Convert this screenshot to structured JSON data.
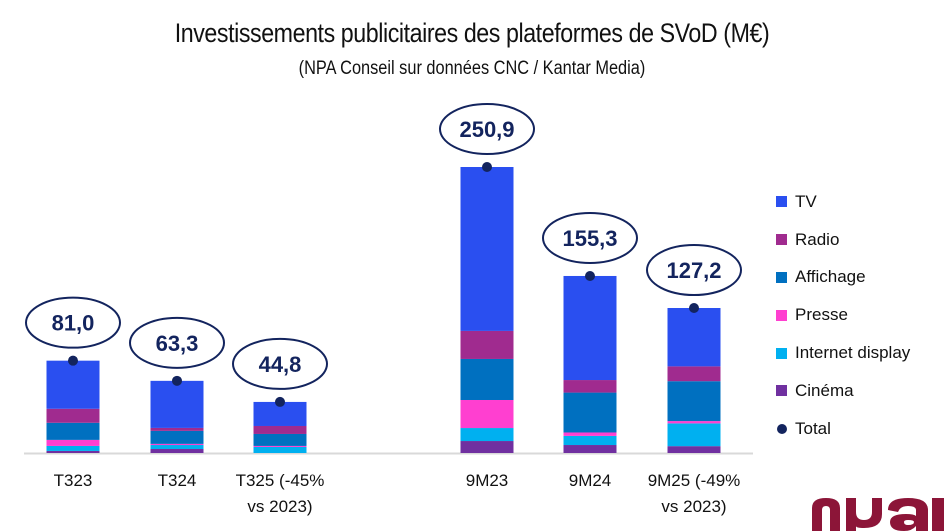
{
  "title": "Investissements publicitaires des plateformes de SVoD (M€)",
  "subtitle": "(NPA Conseil sur données CNC / Kantar Media)",
  "chart_data": {
    "type": "bar",
    "stacked": true,
    "title": "Investissements publicitaires des plateformes de SVoD (M€)",
    "subtitle": "(NPA Conseil sur données CNC / Kantar Media)",
    "xlabel": "",
    "ylabel": "",
    "ylim": [
      0,
      260
    ],
    "grid": false,
    "legend_position": "right",
    "categories": [
      "T323",
      "T324",
      "T325 (-45% vs 2023)",
      "9M23",
      "9M24",
      "9M25 (-49% vs 2023)"
    ],
    "category_lines": [
      [
        "T323"
      ],
      [
        "T324"
      ],
      [
        "T325 (-45%",
        "vs 2023)"
      ],
      [
        "9M23"
      ],
      [
        "9M24"
      ],
      [
        "9M25 (-49%",
        "vs 2023)"
      ]
    ],
    "groups_gap_after_index": 2,
    "series": [
      {
        "name": "Cinéma",
        "color": "#7030a0",
        "values": [
          1.8,
          3.5,
          0.0,
          10.5,
          7.0,
          6.0
        ]
      },
      {
        "name": "Internet display",
        "color": "#00b0f0",
        "values": [
          4.4,
          3.5,
          5.3,
          11.4,
          8.0,
          20.0
        ]
      },
      {
        "name": "Presse",
        "color": "#ff3fd0",
        "values": [
          5.3,
          1.0,
          0.9,
          24.6,
          3.0,
          2.0
        ]
      },
      {
        "name": "Affichage",
        "color": "#0070c0",
        "values": [
          15.0,
          11.4,
          10.5,
          36.0,
          35.0,
          35.0
        ]
      },
      {
        "name": "Radio",
        "color": "#a02b8f",
        "values": [
          12.3,
          2.6,
          7.0,
          24.6,
          11.0,
          13.0
        ]
      },
      {
        "name": "TV",
        "color": "#2a4ff0",
        "values": [
          42.2,
          41.3,
          21.1,
          143.8,
          91.3,
          51.2
        ]
      }
    ],
    "totals": {
      "name": "Total",
      "color": "#13245e",
      "values": [
        81.0,
        63.3,
        44.8,
        250.9,
        155.3,
        127.2
      ],
      "labels": [
        "81,0",
        "63,3",
        "44,8",
        "250,9",
        "155,3",
        "127,2"
      ]
    },
    "legend": [
      {
        "name": "TV",
        "color": "#2a4ff0",
        "marker": "square"
      },
      {
        "name": "Radio",
        "color": "#a02b8f",
        "marker": "square"
      },
      {
        "name": "Affichage",
        "color": "#0070c0",
        "marker": "square"
      },
      {
        "name": "Presse",
        "color": "#ff3fd0",
        "marker": "square"
      },
      {
        "name": "Internet display",
        "color": "#00b0f0",
        "marker": "square"
      },
      {
        "name": "Cinéma",
        "color": "#7030a0",
        "marker": "square"
      },
      {
        "name": "Total",
        "color": "#13245e",
        "marker": "dot"
      }
    ]
  },
  "logo": {
    "text": "npa",
    "color": "#8c1538"
  }
}
